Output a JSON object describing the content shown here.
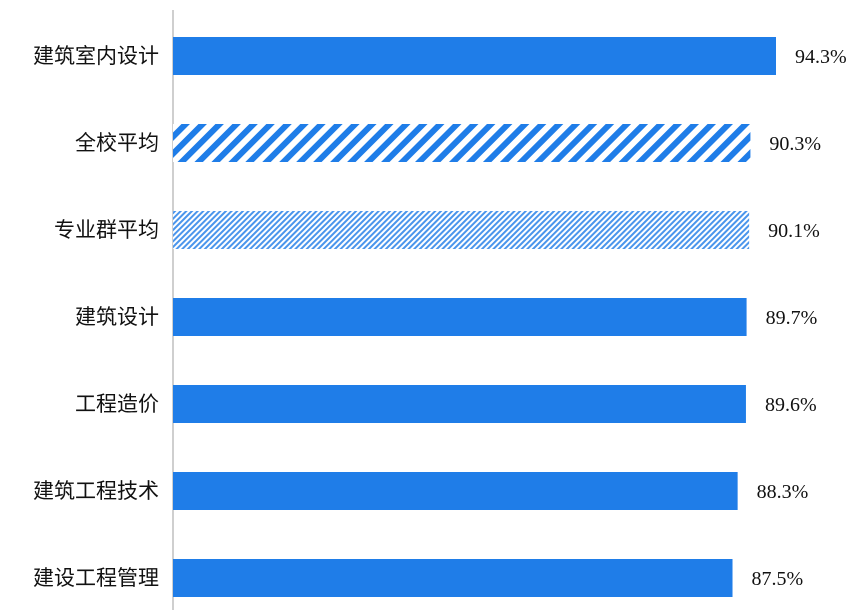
{
  "chart_data": {
    "type": "bar",
    "orientation": "horizontal",
    "title": "",
    "xlabel": "",
    "ylabel": "",
    "xlim": [
      0,
      94.3
    ],
    "grid": false,
    "categories": [
      "建筑室内设计",
      "全校平均",
      "专业群平均",
      "建筑设计",
      "工程造价",
      "建筑工程技术",
      "建设工程管理"
    ],
    "values": [
      94.3,
      90.3,
      90.1,
      89.7,
      89.6,
      88.3,
      87.5
    ],
    "value_labels": [
      "94.3%",
      "90.3%",
      "90.1%",
      "89.7%",
      "89.6%",
      "88.3%",
      "87.5%"
    ],
    "bar_styles": [
      "solid",
      "wide-diagonal-hatch",
      "fine-diagonal-hatch",
      "solid",
      "solid",
      "solid",
      "solid"
    ]
  },
  "colors": {
    "bar": "#1f7de8",
    "axis": "#bfbfbf",
    "text": "#111111"
  }
}
